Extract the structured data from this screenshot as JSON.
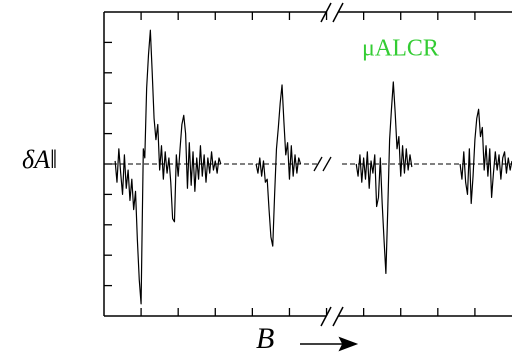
{
  "chart_data": {
    "type": "line",
    "y_label": "δA‖",
    "x_label": "B",
    "annotation": "μALCR",
    "annotation_color": "#33cc33",
    "color": "#000000",
    "xlim": [
      0,
      11
    ],
    "ylim": [
      -5,
      5
    ],
    "xticks": [
      1,
      2,
      3,
      4,
      5,
      6,
      7,
      8,
      9,
      10
    ],
    "yticks": [
      -4,
      -3,
      -2,
      -1,
      0,
      1,
      2,
      3,
      4
    ],
    "x": [
      0.3,
      0.35,
      0.4,
      0.45,
      0.5,
      0.55,
      0.6,
      0.65,
      0.7,
      0.75,
      0.8,
      0.85,
      0.9,
      0.95,
      1.0,
      1.03,
      1.06,
      1.1,
      1.15,
      1.2,
      1.25,
      1.3,
      1.35,
      1.4,
      1.45,
      1.5,
      1.55,
      1.6,
      1.65,
      1.7,
      1.75,
      1.8,
      1.85,
      1.9,
      1.95,
      2.0,
      2.05,
      2.1,
      2.15,
      2.2,
      2.25,
      2.3,
      2.35,
      2.4,
      2.45,
      2.5,
      2.55,
      2.6,
      2.65,
      2.7,
      2.75,
      2.8,
      2.85,
      2.9,
      2.95,
      3.0,
      3.05,
      3.1,
      3.15,
      3.5,
      4.1,
      4.15,
      4.2,
      4.25,
      4.3,
      4.35,
      4.4,
      4.45,
      4.5,
      4.55,
      4.6,
      4.65,
      4.7,
      4.75,
      4.8,
      4.85,
      4.9,
      4.95,
      5.0,
      5.05,
      5.1,
      5.15,
      5.2,
      5.25,
      5.3,
      6,
      6.8,
      6.85,
      6.9,
      6.95,
      7.0,
      7.05,
      7.1,
      7.15,
      7.2,
      7.25,
      7.3,
      7.35,
      7.4,
      7.45,
      7.5,
      7.55,
      7.6,
      7.65,
      7.7,
      7.75,
      7.8,
      7.85,
      7.9,
      7.95,
      8.0,
      8.05,
      8.1,
      8.15,
      8.2,
      8.25,
      8.3,
      9,
      9.6,
      9.65,
      9.7,
      9.75,
      9.8,
      9.85,
      9.9,
      9.95,
      10.0,
      10.05,
      10.1,
      10.15,
      10.2,
      10.25,
      10.3,
      10.35,
      10.4,
      10.45,
      10.5,
      10.55,
      10.6,
      10.65,
      10.7,
      10.75,
      10.8,
      10.85,
      10.9,
      10.95,
      11.0
    ],
    "values": [
      0.1,
      -0.6,
      0.5,
      -0.3,
      -1,
      0.3,
      -0.8,
      -0.2,
      -1.2,
      -0.5,
      -1.5,
      -0.9,
      -2.5,
      -3.8,
      -4.6,
      -2,
      0.5,
      0.2,
      2.5,
      3.6,
      4.4,
      3.0,
      1.5,
      0.8,
      1.3,
      -0.2,
      0.6,
      -0.5,
      0.4,
      -0.3,
      0.2,
      -0.6,
      -1.8,
      -1.9,
      0.3,
      -0.4,
      0.5,
      1.3,
      1.6,
      1.0,
      -0.8,
      0.7,
      -0.7,
      0.4,
      -0.9,
      0.2,
      -0.5,
      0.6,
      -0.4,
      0.3,
      -0.6,
      0.2,
      -0.3,
      0.4,
      -0.2,
      0.1,
      -0.3,
      0.2,
      0,
      null,
      0,
      -0.3,
      0.2,
      -0.4,
      0.1,
      -0.6,
      -0.5,
      -1.5,
      -2.4,
      -2.7,
      -1.0,
      0.5,
      1.2,
      2.0,
      2.6,
      1.4,
      0.3,
      0.7,
      -0.5,
      0.6,
      -0.4,
      0.3,
      -0.3,
      0.2,
      0,
      null,
      0,
      -0.4,
      0.3,
      -0.6,
      0.2,
      -0.5,
      0.4,
      -0.8,
      0.1,
      -0.3,
      0.3,
      -1.4,
      -1.1,
      0.2,
      -1.3,
      -2.5,
      -3.6,
      -1.5,
      0.8,
      1.8,
      2.7,
      1.7,
      0.5,
      0.9,
      -0.4,
      0.6,
      -0.3,
      0.5,
      -0.2,
      0.3,
      -0.1,
      null,
      0,
      -0.5,
      0.4,
      -0.6,
      -1.0,
      0.5,
      -1.3,
      -0.4,
      0.8,
      1.5,
      1.8,
      0.9,
      1.2,
      -0.2,
      0.6,
      -0.4,
      0.5,
      -1.1,
      -0.3,
      0.4,
      -0.2,
      0.3,
      -0.5,
      0.2,
      0.4,
      -0.3,
      0.2,
      -0.2,
      0.1
    ]
  }
}
